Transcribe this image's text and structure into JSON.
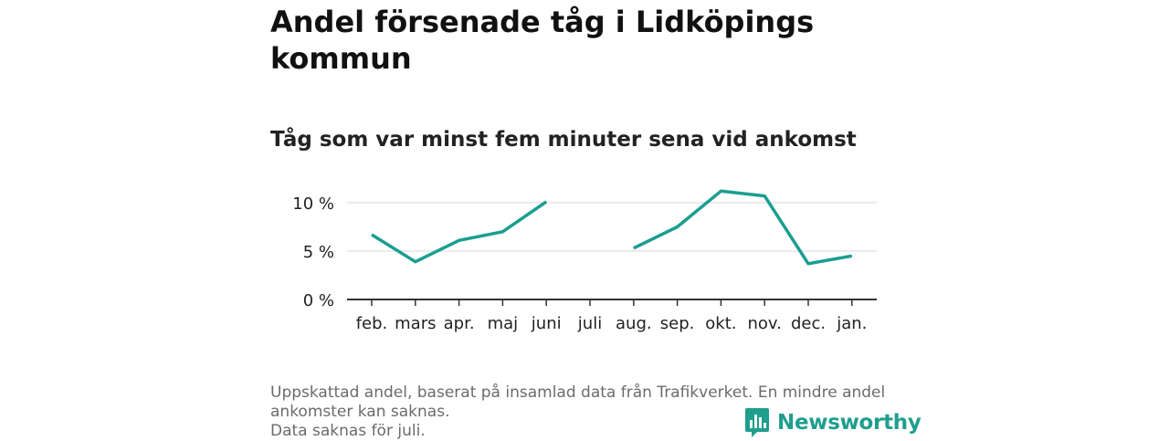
{
  "chart_data": {
    "type": "line",
    "title": "Andel försenade tåg i Lidköpings kommun",
    "subtitle": "Tåg som var minst fem minuter sena vid ankomst",
    "categories": [
      "feb.",
      "mars",
      "apr.",
      "maj",
      "juni",
      "juli",
      "aug.",
      "sep.",
      "okt.",
      "nov.",
      "dec.",
      "jan."
    ],
    "series": [
      {
        "values": [
          6.7,
          3.9,
          6.1,
          7.0,
          10.1,
          null,
          5.3,
          7.5,
          11.2,
          10.7,
          3.7,
          4.5
        ]
      }
    ],
    "ylim": [
      0,
      10
    ],
    "yticks": [
      0,
      5,
      10
    ],
    "ytick_labels": [
      "0 %",
      "5 %",
      "10 %"
    ],
    "grid": true,
    "color": "#1a9e91"
  },
  "footnote": {
    "line1": "Uppskattad andel, baserat på insamlad data från Trafikverket. En mindre andel",
    "line2": "ankomster kan saknas.",
    "line3": "Data saknas för juli."
  },
  "brand": {
    "name": "Newsworthy",
    "color": "#1f9e8e"
  }
}
